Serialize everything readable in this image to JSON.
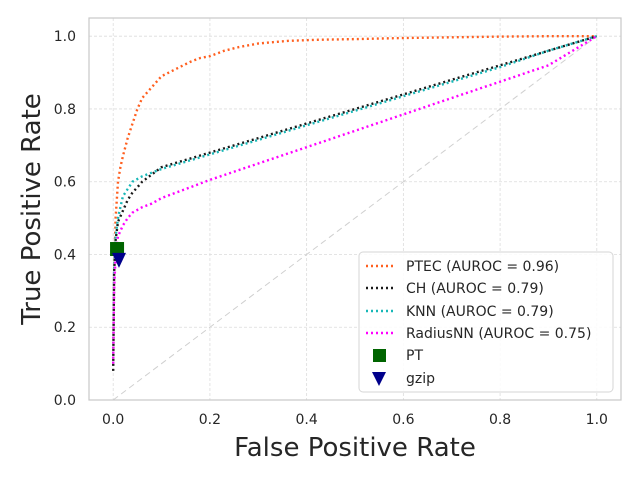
{
  "chart_data": {
    "type": "line",
    "title": "",
    "xlabel": "False Positive Rate",
    "ylabel": "True Positive Rate",
    "xlim": [
      -0.05,
      1.05
    ],
    "ylim": [
      0.0,
      1.05
    ],
    "xticks": [
      0.0,
      0.2,
      0.4,
      0.6,
      0.8,
      1.0
    ],
    "yticks": [
      0.0,
      0.2,
      0.4,
      0.6,
      0.8,
      1.0
    ],
    "xtick_labels": [
      "0.0",
      "0.2",
      "0.4",
      "0.6",
      "0.8",
      "1.0"
    ],
    "ytick_labels": [
      "0.0",
      "0.2",
      "0.4",
      "0.6",
      "0.8",
      "1.0"
    ],
    "grid": true,
    "legend_position": "lower-right",
    "series": [
      {
        "name": "PTEC (AUROC = 0.96)",
        "color": "#ff5f1f",
        "style": "dotted",
        "x": [
          0.0,
          0.002,
          0.005,
          0.01,
          0.015,
          0.02,
          0.03,
          0.04,
          0.05,
          0.06,
          0.08,
          0.1,
          0.13,
          0.16,
          0.18,
          0.2,
          0.23,
          0.26,
          0.3,
          0.36,
          0.42,
          0.5,
          0.6,
          0.7,
          0.8,
          0.9,
          1.0
        ],
        "y": [
          0.1,
          0.35,
          0.5,
          0.6,
          0.64,
          0.67,
          0.72,
          0.76,
          0.8,
          0.83,
          0.86,
          0.89,
          0.91,
          0.93,
          0.94,
          0.945,
          0.96,
          0.97,
          0.98,
          0.987,
          0.99,
          0.992,
          0.995,
          0.997,
          0.999,
          1.0,
          1.0
        ]
      },
      {
        "name": "CH (AUROC = 0.79)",
        "color": "#1a1a1a",
        "style": "dotted",
        "x": [
          0.0,
          0.002,
          0.005,
          0.01,
          0.02,
          0.03,
          0.04,
          0.05,
          0.06,
          0.08,
          0.1,
          0.15,
          0.2,
          0.3,
          0.4,
          0.5,
          0.6,
          0.7,
          0.8,
          0.9,
          1.0
        ],
        "y": [
          0.08,
          0.35,
          0.44,
          0.49,
          0.52,
          0.55,
          0.57,
          0.585,
          0.6,
          0.62,
          0.64,
          0.66,
          0.68,
          0.72,
          0.76,
          0.8,
          0.84,
          0.88,
          0.92,
          0.96,
          1.0
        ]
      },
      {
        "name": "KNN (AUROC = 0.79)",
        "color": "#17b7b7",
        "style": "dotted",
        "x": [
          0.0,
          0.002,
          0.005,
          0.01,
          0.015,
          0.02,
          0.03,
          0.04,
          0.06,
          0.08,
          0.1,
          0.15,
          0.2,
          0.3,
          0.4,
          0.5,
          0.6,
          0.7,
          0.8,
          0.9,
          1.0
        ],
        "y": [
          0.1,
          0.35,
          0.45,
          0.5,
          0.53,
          0.56,
          0.58,
          0.6,
          0.615,
          0.625,
          0.635,
          0.655,
          0.675,
          0.715,
          0.755,
          0.795,
          0.835,
          0.875,
          0.915,
          0.96,
          1.0
        ]
      },
      {
        "name": "RadiusNN (AUROC = 0.75)",
        "color": "#ff00ff",
        "style": "dotted",
        "x": [
          0.0,
          0.002,
          0.005,
          0.01,
          0.02,
          0.03,
          0.04,
          0.06,
          0.08,
          0.1,
          0.15,
          0.2,
          0.3,
          0.4,
          0.5,
          0.6,
          0.7,
          0.8,
          0.9,
          1.0
        ],
        "y": [
          0.1,
          0.3,
          0.4,
          0.45,
          0.48,
          0.5,
          0.515,
          0.53,
          0.54,
          0.555,
          0.58,
          0.605,
          0.65,
          0.695,
          0.74,
          0.785,
          0.83,
          0.875,
          0.92,
          1.0
        ]
      }
    ],
    "diagonal": {
      "x": [
        0.0,
        1.0
      ],
      "y": [
        0.0,
        1.0
      ],
      "color": "#d0d0d0"
    },
    "markers": [
      {
        "name": "PT",
        "x": 0.008,
        "y": 0.415,
        "shape": "square",
        "color": "#006400"
      },
      {
        "name": "gzip",
        "x": 0.012,
        "y": 0.385,
        "shape": "triangle-down",
        "color": "#00008b"
      }
    ]
  }
}
